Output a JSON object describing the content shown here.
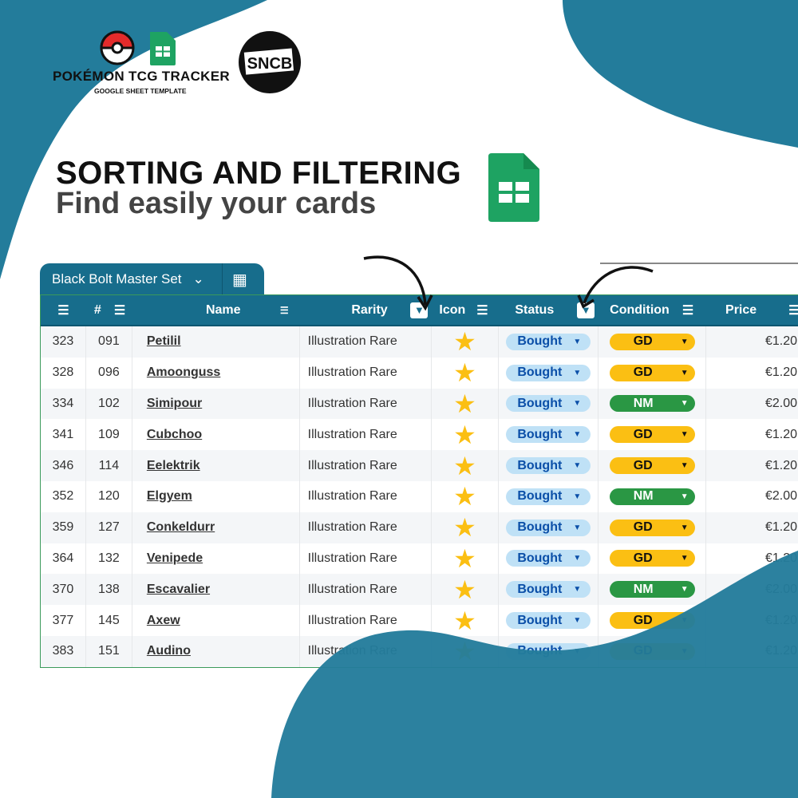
{
  "brand": {
    "title": "POKÉMON TCG TRACKER",
    "subtitle": "GOOGLE SHEET TEMPLATE",
    "partner_logo_text": "SNCB"
  },
  "headline": {
    "title": "SORTING AND FILTERING",
    "subtitle": "Find easily your cards"
  },
  "colors": {
    "teal": "#237c9b",
    "header": "#176d8c",
    "status_pill": "#bfe1f6",
    "gd": "#fbbf13",
    "nm": "#2a9744",
    "star": "#fbbf13"
  },
  "sheet_tab": {
    "label": "Black Bolt Master Set"
  },
  "columns": [
    "",
    "#",
    "Name",
    "Rarity",
    "Icon",
    "Status",
    "Condition",
    "Price"
  ],
  "rows": [
    {
      "idx": "323",
      "num": "091",
      "name": "Petilil",
      "rarity": "Illustration Rare",
      "icon": "star",
      "status": "Bought",
      "condition": "GD",
      "price": "€1.20"
    },
    {
      "idx": "328",
      "num": "096",
      "name": "Amoonguss",
      "rarity": "Illustration Rare",
      "icon": "star",
      "status": "Bought",
      "condition": "GD",
      "price": "€1.20"
    },
    {
      "idx": "334",
      "num": "102",
      "name": "Simipour",
      "rarity": "Illustration Rare",
      "icon": "star",
      "status": "Bought",
      "condition": "NM",
      "price": "€2.00"
    },
    {
      "idx": "341",
      "num": "109",
      "name": "Cubchoo",
      "rarity": "Illustration Rare",
      "icon": "star",
      "status": "Bought",
      "condition": "GD",
      "price": "€1.20"
    },
    {
      "idx": "346",
      "num": "114",
      "name": "Eelektrik",
      "rarity": "Illustration Rare",
      "icon": "star",
      "status": "Bought",
      "condition": "GD",
      "price": "€1.20"
    },
    {
      "idx": "352",
      "num": "120",
      "name": "Elgyem",
      "rarity": "Illustration Rare",
      "icon": "star",
      "status": "Bought",
      "condition": "NM",
      "price": "€2.00"
    },
    {
      "idx": "359",
      "num": "127",
      "name": "Conkeldurr",
      "rarity": "Illustration Rare",
      "icon": "star",
      "status": "Bought",
      "condition": "GD",
      "price": "€1.20"
    },
    {
      "idx": "364",
      "num": "132",
      "name": "Venipede",
      "rarity": "Illustration Rare",
      "icon": "star",
      "status": "Bought",
      "condition": "GD",
      "price": "€1.20"
    },
    {
      "idx": "370",
      "num": "138",
      "name": "Escavalier",
      "rarity": "Illustration Rare",
      "icon": "star",
      "status": "Bought",
      "condition": "NM",
      "price": "€2.00"
    },
    {
      "idx": "377",
      "num": "145",
      "name": "Axew",
      "rarity": "Illustration Rare",
      "icon": "star",
      "status": "Bought",
      "condition": "GD",
      "price": "€1.20"
    },
    {
      "idx": "383",
      "num": "151",
      "name": "Audino",
      "rarity": "Illustration Rare",
      "icon": "star",
      "status": "Bought",
      "condition": "GD",
      "price": "€1.20"
    }
  ]
}
